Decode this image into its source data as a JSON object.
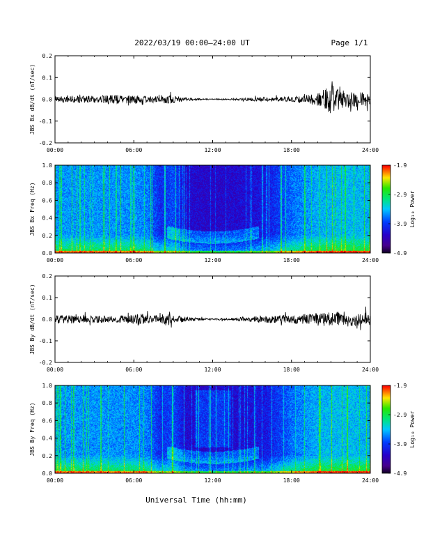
{
  "header": {
    "title": "2022/03/19  00:00–24:00 UT",
    "page": "Page 1/1"
  },
  "colors": {
    "trace": "#000000",
    "frame": "#000000",
    "background": "#ffffff"
  },
  "chart_data": [
    {
      "type": "line",
      "ylabel": "JBS Bx dB/dt (nT/sec)",
      "xlim": [
        0,
        24
      ],
      "ylim": [
        -0.2,
        0.2
      ],
      "x_ticks": [
        "00:00",
        "06:00",
        "12:00",
        "18:00",
        "24:00"
      ],
      "y_ticks": [
        "-0.2",
        "-0.1",
        "0.0",
        "0.1",
        "0.2"
      ],
      "series": [
        {
          "x": [
            0,
            1,
            2,
            3,
            4,
            5,
            6,
            7,
            8,
            8.5,
            9,
            10,
            11,
            12,
            13,
            14,
            15,
            16,
            17,
            18,
            19,
            20,
            20.5,
            21,
            21.5,
            22,
            23,
            24
          ],
          "amplitude": [
            0.016,
            0.015,
            0.016,
            0.018,
            0.018,
            0.02,
            0.018,
            0.016,
            0.015,
            0.02,
            0.018,
            0.008,
            0.004,
            0.002,
            0.003,
            0.005,
            0.008,
            0.009,
            0.01,
            0.012,
            0.018,
            0.03,
            0.05,
            0.07,
            0.05,
            0.04,
            0.035,
            0.03
          ]
        }
      ]
    },
    {
      "type": "heatmap",
      "ylabel": "JBS Bx Freq (Hz)",
      "xlim": [
        0,
        24
      ],
      "ylim": [
        0.0,
        1.0
      ],
      "x_ticks": [
        "00:00",
        "06:00",
        "12:00",
        "18:00",
        "24:00"
      ],
      "y_ticks": [
        "0.0",
        "0.2",
        "0.4",
        "0.6",
        "0.8",
        "1.0"
      ],
      "colorbar": {
        "label": "Log₁₀ Power",
        "ticks": [
          "-1.9",
          "-2.9",
          "-3.9",
          "-4.9"
        ],
        "range": [
          -4.9,
          -1.9
        ]
      }
    },
    {
      "type": "line",
      "ylabel": "JBS By dB/dt (nT/sec)",
      "xlim": [
        0,
        24
      ],
      "ylim": [
        -0.2,
        0.2
      ],
      "x_ticks": [
        "00:00",
        "06:00",
        "12:00",
        "18:00",
        "24:00"
      ],
      "y_ticks": [
        "-0.2",
        "-0.1",
        "0.0",
        "0.1",
        "0.2"
      ],
      "series": [
        {
          "x": [
            0,
            1,
            2,
            3,
            4,
            5,
            6,
            6.5,
            7,
            8,
            8.7,
            9,
            10,
            11,
            12,
            13,
            14,
            15,
            16,
            17,
            18,
            19,
            20,
            21,
            22,
            23,
            24
          ],
          "amplitude": [
            0.022,
            0.02,
            0.018,
            0.016,
            0.016,
            0.016,
            0.022,
            0.035,
            0.02,
            0.016,
            0.04,
            0.018,
            0.012,
            0.006,
            0.004,
            0.005,
            0.008,
            0.012,
            0.016,
            0.018,
            0.02,
            0.024,
            0.03,
            0.035,
            0.035,
            0.03,
            0.03
          ]
        }
      ]
    },
    {
      "type": "heatmap",
      "ylabel": "JBS By Freq (Hz)",
      "xlim": [
        0,
        24
      ],
      "ylim": [
        0.0,
        1.0
      ],
      "x_ticks": [
        "00:00",
        "06:00",
        "12:00",
        "18:00",
        "24:00"
      ],
      "y_ticks": [
        "0.0",
        "0.2",
        "0.4",
        "0.6",
        "0.8",
        "1.0"
      ],
      "colorbar": {
        "label": "Log₁₀ Power",
        "ticks": [
          "-1.9",
          "-2.9",
          "-3.9",
          "-4.9"
        ],
        "range": [
          -4.9,
          -1.9
        ]
      }
    }
  ],
  "xlabel": "Universal Time (hh:mm)"
}
